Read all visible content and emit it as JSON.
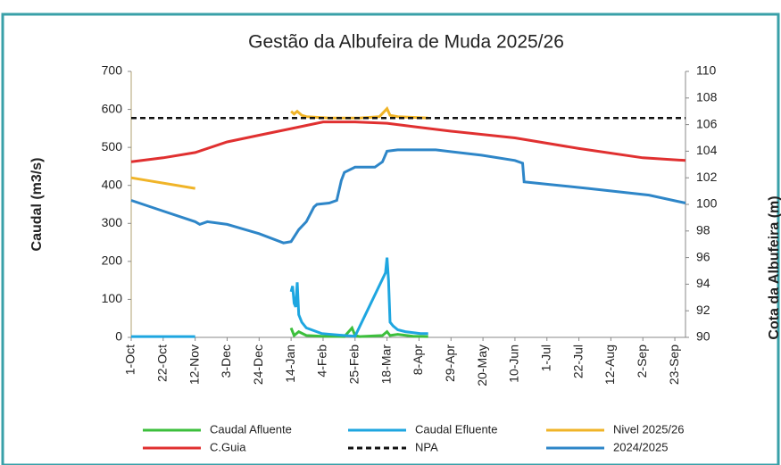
{
  "chart_data": {
    "type": "line",
    "title": "Gestão da Albufeira de Muda 2025/26",
    "y_label": "Caudal (m3/s)",
    "y2_label": "Cota da Albufeira (m)",
    "xlim": [
      0,
      364
    ],
    "xticks": [
      {
        "value": 0,
        "label": "1-Oct"
      },
      {
        "value": 21,
        "label": "22-Oct"
      },
      {
        "value": 42,
        "label": "12-Nov"
      },
      {
        "value": 63,
        "label": "3-Dec"
      },
      {
        "value": 84,
        "label": "24-Dec"
      },
      {
        "value": 105,
        "label": "14-Jan"
      },
      {
        "value": 126,
        "label": "4-Feb"
      },
      {
        "value": 147,
        "label": "25-Feb"
      },
      {
        "value": 168,
        "label": "18-Mar"
      },
      {
        "value": 189,
        "label": "8-Apr"
      },
      {
        "value": 210,
        "label": "29-Apr"
      },
      {
        "value": 231,
        "label": "20-May"
      },
      {
        "value": 252,
        "label": "10-Jun"
      },
      {
        "value": 273,
        "label": "1-Jul"
      },
      {
        "value": 294,
        "label": "22-Jul"
      },
      {
        "value": 315,
        "label": "12-Aug"
      },
      {
        "value": 336,
        "label": "2-Sep"
      },
      {
        "value": 357,
        "label": "23-Sep"
      }
    ],
    "ylim": [
      0,
      700
    ],
    "yticks": [
      0,
      100,
      200,
      300,
      400,
      500,
      600,
      700
    ],
    "y2lim": [
      90,
      110
    ],
    "y2ticks": [
      90,
      92,
      94,
      96,
      98,
      100,
      102,
      104,
      106,
      108,
      110
    ],
    "series": [
      {
        "name": "Caudal Afluente",
        "color": "#3cbf3c",
        "axis": "y",
        "x": [
          105,
          107,
          110,
          115,
          125,
          140,
          145,
          147,
          150,
          165,
          168,
          170,
          175,
          185,
          195
        ],
        "values": [
          25,
          5,
          15,
          5,
          3,
          2,
          25,
          5,
          2,
          5,
          15,
          5,
          8,
          3,
          2
        ]
      },
      {
        "name": "Caudal Efluente",
        "color": "#1ea6e0",
        "axis": "y",
        "x": [
          0,
          42,
          70,
          105,
          106,
          107,
          108,
          109,
          110,
          112,
          115,
          125,
          140,
          147,
          167,
          168,
          169,
          170,
          172,
          175,
          180,
          190,
          195
        ],
        "values": [
          2,
          2,
          null,
          120,
          135,
          90,
          80,
          145,
          60,
          40,
          25,
          10,
          5,
          3,
          170,
          210,
          150,
          40,
          30,
          20,
          15,
          10,
          10
        ]
      },
      {
        "name": "Nivel 2025/26",
        "color": "#f0b428",
        "axis": "y2",
        "x": [
          0,
          42,
          70,
          105,
          107,
          109,
          112,
          115,
          130,
          150,
          163,
          168,
          170,
          175,
          195
        ],
        "values": [
          102,
          101.2,
          null,
          107,
          106.8,
          107,
          106.7,
          106.6,
          106.5,
          106.5,
          106.6,
          107.2,
          106.7,
          106.6,
          106.5
        ]
      },
      {
        "name": "C.Guia",
        "color": "#e03030",
        "axis": "y2",
        "x": [
          0,
          21,
          42,
          63,
          84,
          105,
          126,
          147,
          168,
          189,
          210,
          252,
          294,
          336,
          364
        ],
        "values": [
          103.2,
          103.5,
          103.9,
          104.7,
          105.2,
          105.7,
          106.2,
          106.2,
          106.1,
          105.8,
          105.5,
          105,
          104.2,
          103.5,
          103.3
        ]
      },
      {
        "name": "NPA",
        "color": "#111111",
        "axis": "y2",
        "dash": true,
        "x": [
          0,
          364
        ],
        "values": [
          106.5,
          106.5
        ]
      },
      {
        "name": "2024/2025",
        "color": "#2e86c8",
        "axis": "y2",
        "x": [
          0,
          21,
          42,
          45,
          50,
          63,
          84,
          100,
          105,
          110,
          115,
          120,
          122,
          130,
          135,
          138,
          140,
          147,
          160,
          165,
          168,
          175,
          200,
          230,
          252,
          257,
          258,
          275,
          300,
          340,
          364
        ],
        "values": [
          100.3,
          99.5,
          98.7,
          98.5,
          98.7,
          98.5,
          97.8,
          97.1,
          97.2,
          98.1,
          98.7,
          99.8,
          100,
          100.1,
          100.3,
          101.8,
          102.4,
          102.8,
          102.8,
          103.2,
          104,
          104.1,
          104.1,
          103.7,
          103.3,
          103.1,
          101.7,
          101.5,
          101.2,
          100.7,
          100.1
        ]
      }
    ]
  }
}
